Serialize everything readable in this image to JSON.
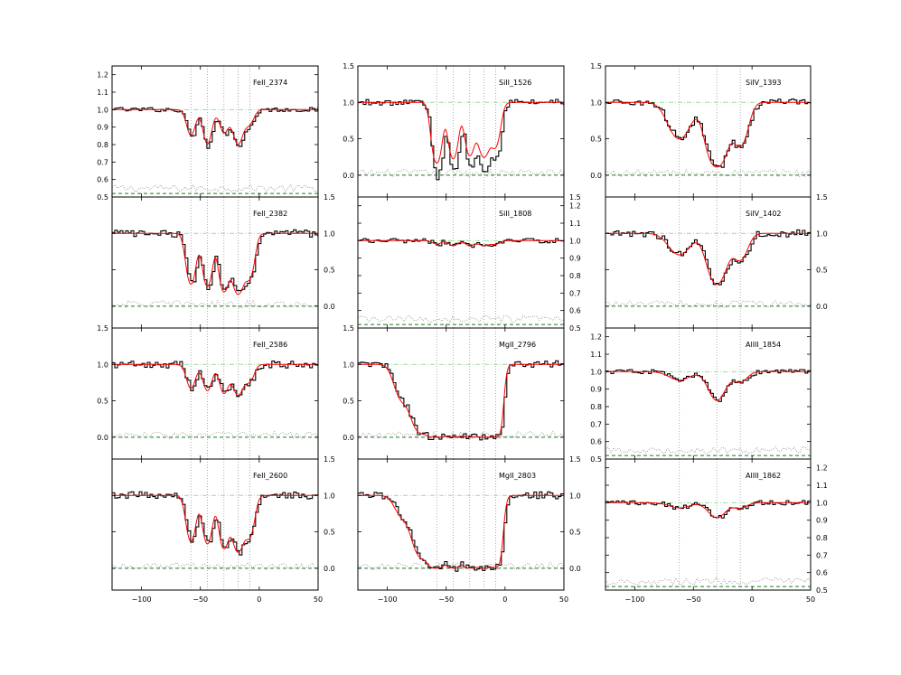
{
  "figure": {
    "columns": [
      {
        "x_tick_labels": [
          "−100",
          "−50",
          "0",
          "50"
        ],
        "panels": [
          {
            "label": "FeII_2374",
            "ylim": [
              0.5,
              1.25
            ],
            "yticks": [
              "0.5",
              "0.6",
              "0.7",
              "0.8",
              "0.9",
              "1.0",
              "1.1",
              "1.2"
            ],
            "ytick_side": "left",
            "top_overflow_label": "",
            "components": [
              {
                "v": -58,
                "d": 0.16,
                "b": 5
              },
              {
                "v": -44,
                "d": 0.22,
                "b": 5
              },
              {
                "v": -30,
                "d": 0.14,
                "b": 5
              },
              {
                "v": -18,
                "d": 0.22,
                "b": 6
              },
              {
                "v": -8,
                "d": 0.08,
                "b": 5
              }
            ],
            "data_offset": -0.05,
            "zero_line": 0.52
          },
          {
            "label": "FeII_2382",
            "ylim": [
              -0.3,
              1.5
            ],
            "yticks": [
              "0.0",
              "0.5",
              "1.0"
            ],
            "ytick_side": "right",
            "top_overflow_label": "1.5",
            "components": [
              {
                "v": -58,
                "d": 1.2,
                "b": 5
              },
              {
                "v": -44,
                "d": 1.3,
                "b": 5
              },
              {
                "v": -30,
                "d": 1.6,
                "b": 5
              },
              {
                "v": -18,
                "d": 1.8,
                "b": 6
              },
              {
                "v": -8,
                "d": 0.9,
                "b": 5
              }
            ],
            "data_offset": 0.0,
            "zero_line": 0.0
          },
          {
            "label": "FeII_2586",
            "ylim": [
              -0.3,
              1.5
            ],
            "yticks": [
              "0.0",
              "0.5",
              "1.0"
            ],
            "ytick_side": "left",
            "top_overflow_label": "1.5",
            "components": [
              {
                "v": -58,
                "d": 0.4,
                "b": 5
              },
              {
                "v": -44,
                "d": 0.45,
                "b": 5
              },
              {
                "v": -30,
                "d": 0.5,
                "b": 5
              },
              {
                "v": -18,
                "d": 0.55,
                "b": 6
              },
              {
                "v": -8,
                "d": 0.25,
                "b": 5
              }
            ],
            "data_offset": 0.0,
            "zero_line": 0.0
          },
          {
            "label": "FeII_2600",
            "ylim": [
              -0.3,
              1.5
            ],
            "yticks": [
              "0.0",
              "0.5",
              "1.0"
            ],
            "ytick_side": "right",
            "top_overflow_label": "1.5",
            "components": [
              {
                "v": -58,
                "d": 1.0,
                "b": 5
              },
              {
                "v": -44,
                "d": 1.1,
                "b": 5
              },
              {
                "v": -30,
                "d": 1.3,
                "b": 5
              },
              {
                "v": -18,
                "d": 1.5,
                "b": 6
              },
              {
                "v": -8,
                "d": 0.8,
                "b": 5
              }
            ],
            "data_offset": 0.0,
            "zero_line": 0.0
          }
        ]
      },
      {
        "x_tick_labels": [
          "−100",
          "−50",
          "0",
          "50"
        ],
        "panels": [
          {
            "label": "SiII_1526",
            "ylim": [
              -0.3,
              1.5
            ],
            "yticks": [
              "0.0",
              "0.5",
              "1.0",
              "1.5"
            ],
            "ytick_side": "left",
            "top_overflow_label": "",
            "components": [
              {
                "v": -58,
                "d": 1.8,
                "b": 5
              },
              {
                "v": -44,
                "d": 1.5,
                "b": 5
              },
              {
                "v": -30,
                "d": 1.3,
                "b": 5
              },
              {
                "v": -18,
                "d": 1.4,
                "b": 6
              },
              {
                "v": -8,
                "d": 0.9,
                "b": 5
              }
            ],
            "data_offset": -0.15,
            "zero_line": 0.0
          },
          {
            "label": "SiII_1808",
            "ylim": [
              0.5,
              1.25
            ],
            "yticks": [
              "0.5",
              "0.6",
              "0.7",
              "0.8",
              "0.9",
              "1.0",
              "1.1",
              "1.2"
            ],
            "ytick_side": "right",
            "top_overflow_label": "1.5",
            "components": [
              {
                "v": -58,
                "d": 0.02,
                "b": 5
              },
              {
                "v": -44,
                "d": 0.03,
                "b": 5
              },
              {
                "v": -30,
                "d": 0.03,
                "b": 5
              },
              {
                "v": -18,
                "d": 0.03,
                "b": 6
              },
              {
                "v": -8,
                "d": 0.02,
                "b": 5
              }
            ],
            "data_offset": -0.01,
            "zero_line": 0.52
          },
          {
            "label": "MgII_2796",
            "ylim": [
              -0.3,
              1.5
            ],
            "yticks": [
              "0.0",
              "0.5",
              "1.0"
            ],
            "ytick_side": "left",
            "top_overflow_label": "1.5",
            "components": [
              {
                "v": -70,
                "d": 3.0,
                "b": 10
              },
              {
                "v": -58,
                "d": 8,
                "b": 6
              },
              {
                "v": -44,
                "d": 8,
                "b": 6
              },
              {
                "v": -30,
                "d": 8,
                "b": 6
              },
              {
                "v": -18,
                "d": 8,
                "b": 6
              },
              {
                "v": -8,
                "d": 5,
                "b": 5
              },
              {
                "v": -88,
                "d": 0.6,
                "b": 8
              }
            ],
            "data_offset": 0.0,
            "zero_line": 0.0
          },
          {
            "label": "MgII_2803",
            "ylim": [
              -0.3,
              1.5
            ],
            "yticks": [
              "0.0",
              "0.5",
              "1.0"
            ],
            "ytick_side": "right",
            "top_overflow_label": "1.5",
            "components": [
              {
                "v": -70,
                "d": 2.0,
                "b": 10
              },
              {
                "v": -58,
                "d": 6,
                "b": 6
              },
              {
                "v": -44,
                "d": 6,
                "b": 6
              },
              {
                "v": -30,
                "d": 6,
                "b": 6
              },
              {
                "v": -18,
                "d": 6,
                "b": 6
              },
              {
                "v": -8,
                "d": 4,
                "b": 5
              },
              {
                "v": -88,
                "d": 0.3,
                "b": 8
              }
            ],
            "data_offset": 0.0,
            "zero_line": 0.0
          }
        ]
      },
      {
        "x_tick_labels": [
          "−100",
          "−50",
          "0",
          "50"
        ],
        "panels": [
          {
            "label": "SiIV_1393",
            "ylim": [
              -0.3,
              1.5
            ],
            "yticks": [
              "0.0",
              "0.5",
              "1.0",
              "1.5"
            ],
            "ytick_side": "left",
            "top_overflow_label": "",
            "components": [
              {
                "v": -62,
                "d": 0.7,
                "b": 12
              },
              {
                "v": -30,
                "d": 2.2,
                "b": 10
              },
              {
                "v": -10,
                "d": 0.9,
                "b": 8
              }
            ],
            "data_offset": 0.0,
            "zero_line": 0.0
          },
          {
            "label": "SiIV_1402",
            "ylim": [
              -0.3,
              1.5
            ],
            "yticks": [
              "0.0",
              "0.5",
              "1.0"
            ],
            "ytick_side": "right",
            "top_overflow_label": "1.5",
            "components": [
              {
                "v": -62,
                "d": 0.35,
                "b": 12
              },
              {
                "v": -30,
                "d": 1.2,
                "b": 10
              },
              {
                "v": -10,
                "d": 0.45,
                "b": 8
              }
            ],
            "data_offset": 0.0,
            "zero_line": 0.0
          },
          {
            "label": "AlIII_1854",
            "ylim": [
              0.5,
              1.25
            ],
            "yticks": [
              "0.5",
              "0.6",
              "0.7",
              "0.8",
              "0.9",
              "1.0",
              "1.1",
              "1.2"
            ],
            "ytick_side": "left",
            "top_overflow_label": "",
            "components": [
              {
                "v": -62,
                "d": 0.05,
                "b": 12
              },
              {
                "v": -30,
                "d": 0.18,
                "b": 10
              },
              {
                "v": -10,
                "d": 0.06,
                "b": 8
              }
            ],
            "data_offset": 0.0,
            "zero_line": 0.52
          },
          {
            "label": "AlIII_1862",
            "ylim": [
              0.5,
              1.25
            ],
            "yticks": [
              "0.5",
              "0.6",
              "0.7",
              "0.8",
              "0.9",
              "1.0",
              "1.1",
              "1.2"
            ],
            "ytick_side": "right",
            "top_overflow_label": "",
            "components": [
              {
                "v": -62,
                "d": 0.03,
                "b": 12
              },
              {
                "v": -30,
                "d": 0.09,
                "b": 10
              },
              {
                "v": -10,
                "d": 0.03,
                "b": 8
              }
            ],
            "data_offset": 0.0,
            "zero_line": 0.52
          }
        ]
      }
    ]
  },
  "chart_data": {
    "type": "line",
    "xlim": [
      -125,
      50
    ],
    "x_ticks": [
      -100,
      -50,
      0,
      50
    ],
    "xlabel": "",
    "ylabel": "",
    "component_velocities_column1_2": [
      -58,
      -44,
      -30,
      -18,
      -8
    ],
    "component_velocities_column3": [
      -62,
      -30,
      -10
    ],
    "series": [
      {
        "name": "",
        "color": "#000000",
        "style": "steps"
      },
      {
        "name": "",
        "color": "#ff0000",
        "style": "line"
      },
      {
        "name": "",
        "color": "#888888",
        "style": "dotted"
      },
      {
        "name": "",
        "color": "#008000",
        "style": "dashed"
      },
      {
        "name": "",
        "color": "#99dd99",
        "style": "dashdot"
      }
    ],
    "grid": false,
    "legend": "none"
  },
  "colors": {
    "data": "#000000",
    "model": "#ff0000",
    "error": "#888888",
    "zero_line": "#1f7a1f",
    "continuum": "#99dd99",
    "component_marker": "#999999"
  }
}
